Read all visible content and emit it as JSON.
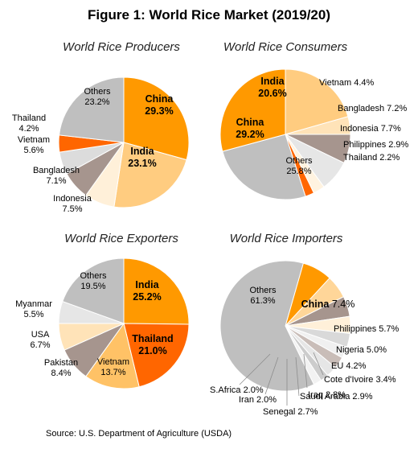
{
  "title": "Figure 1: World Rice Market (2019/20)",
  "source": "Source: U.S. Department of Agriculture (USDA)",
  "chart_data": [
    {
      "type": "pie",
      "title": "World Rice Producers",
      "slices": [
        {
          "name": "China",
          "value": 29.3,
          "color": "#FF9900",
          "label": "China|29.3%"
        },
        {
          "name": "India",
          "value": 23.1,
          "color": "#FFCC80",
          "label": "India|23.1%"
        },
        {
          "name": "Indonesia",
          "value": 7.5,
          "color": "#FFF0D9",
          "label": "Indonesia|7.5%"
        },
        {
          "name": "Bangladesh",
          "value": 7.1,
          "color": "#A6958E",
          "label": "Bangladesh|7.1%"
        },
        {
          "name": "Vietnam",
          "value": 5.6,
          "color": "#DCDCDC",
          "label": "Vietnam|5.6%"
        },
        {
          "name": "Thailand",
          "value": 4.2,
          "color": "#FF6600",
          "label": "Thailand|4.2%"
        },
        {
          "name": "Others",
          "value": 23.2,
          "color": "#BFBFBF",
          "label": "Others|23.2%"
        }
      ]
    },
    {
      "type": "pie",
      "title": "World Rice Consumers",
      "slices": [
        {
          "name": "India",
          "value": 20.6,
          "color": "#FFCC80",
          "label": "India|20.6%"
        },
        {
          "name": "Vietnam",
          "value": 4.4,
          "color": "#FFE3B8",
          "label": "Vietnam 4.4%"
        },
        {
          "name": "Bangladesh",
          "value": 7.2,
          "color": "#A6958E",
          "label": "Bangladesh 7.2%"
        },
        {
          "name": "Indonesia",
          "value": 7.7,
          "color": "#E6E6E6",
          "label": "Indonesia 7.7%"
        },
        {
          "name": "Philippines",
          "value": 2.9,
          "color": "#FFF3E0",
          "label": "Philippines 2.9%"
        },
        {
          "name": "Thailand",
          "value": 2.2,
          "color": "#FF6600",
          "label": "Thailand 2.2%"
        },
        {
          "name": "Others",
          "value": 25.8,
          "color": "#BFBFBF",
          "label": "Others|25.8%"
        },
        {
          "name": "China",
          "value": 29.2,
          "color": "#FF9900",
          "label": "China|29.2%"
        }
      ]
    },
    {
      "type": "pie",
      "title": "World Rice Exporters",
      "slices": [
        {
          "name": "India",
          "value": 25.2,
          "color": "#FF9900",
          "label": "India|25.2%"
        },
        {
          "name": "Thailand",
          "value": 21.0,
          "color": "#FF6600",
          "label": "Thailand|21.0%"
        },
        {
          "name": "Vietnam",
          "value": 13.7,
          "color": "#FFC266",
          "label": "Vietnam|13.7%"
        },
        {
          "name": "Pakistan",
          "value": 8.4,
          "color": "#A6958E",
          "label": "Pakistan|8.4%"
        },
        {
          "name": "USA",
          "value": 6.7,
          "color": "#FFE3B8",
          "label": "USA|6.7%"
        },
        {
          "name": "Myanmar",
          "value": 5.5,
          "color": "#E6E6E6",
          "label": "Myanmar|5.5%"
        },
        {
          "name": "Others",
          "value": 19.5,
          "color": "#BFBFBF",
          "label": "Others|19.5%"
        }
      ]
    },
    {
      "type": "pie",
      "title": "World Rice Importers",
      "slices": [
        {
          "name": "China",
          "value": 7.4,
          "color": "#FF9900",
          "label": "China 7.4%"
        },
        {
          "name": "Philippines",
          "value": 5.7,
          "color": "#FFD699",
          "label": "Philippines 5.7%"
        },
        {
          "name": "Nigeria",
          "value": 5.0,
          "color": "#A6958E",
          "label": "Nigeria  5.0%"
        },
        {
          "name": "EU",
          "value": 4.2,
          "color": "#FFF0D9",
          "label": "EU 4.2%"
        },
        {
          "name": "Cote d'Ivoire",
          "value": 3.4,
          "color": "#D9D9D9",
          "label": "Cote d'Ivoire 3.4%"
        },
        {
          "name": "Iraq",
          "value": 2.8,
          "color": "#F0F0F0",
          "label": "Iraq  2.8%"
        },
        {
          "name": "Saudi Arabia",
          "value": 2.9,
          "color": "#C9BDB8",
          "label": "Saudi Arabia 2.9%"
        },
        {
          "name": "Senegal",
          "value": 2.7,
          "color": "#E6E6E6",
          "label": "Senegal  2.7%"
        },
        {
          "name": "Iran",
          "value": 2.0,
          "color": "#CCCCCC",
          "label": "Iran 2.0%"
        },
        {
          "name": "S.Africa",
          "value": 2.0,
          "color": "#F2F2F2",
          "label": "S.Africa  2.0%"
        },
        {
          "name": "Others",
          "value": 61.3,
          "color": "#BFBFBF",
          "label": "Others|61.3%"
        }
      ]
    }
  ]
}
